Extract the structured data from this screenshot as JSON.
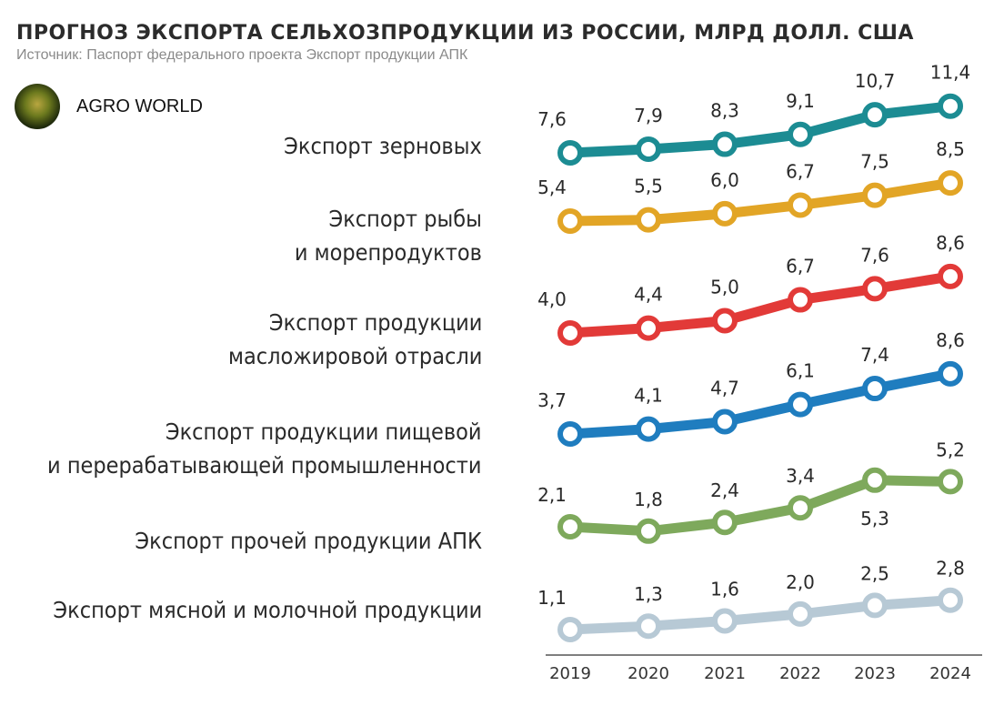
{
  "header": {
    "title": "ПРОГНОЗ ЭКСПОРТА СЕЛЬХОЗПРОДУКЦИИ ИЗ РОССИИ,  МЛРД ДОЛЛ. США",
    "source": "Источник: Паспорт федерального проекта Экспорт продукции АПК"
  },
  "brand": {
    "name": "AGRO WORLD",
    "logo_icon": "agro-world-logo-icon"
  },
  "categories": [
    {
      "line1": "Экспорт зерновых",
      "line2": ""
    },
    {
      "line1": "Экспорт рыбы",
      "line2": "и морепродуктов"
    },
    {
      "line1": "Экспорт продукции",
      "line2": "масложировой отрасли"
    },
    {
      "line1": "Экспорт продукции пищевой",
      "line2": "и перерабатывающей промышленности"
    },
    {
      "line1": "Экспорт прочей продукции АПК",
      "line2": ""
    },
    {
      "line1": "Экспорт мясной и молочной продукции",
      "line2": ""
    }
  ],
  "chart_data": {
    "type": "line",
    "x": [
      "2019",
      "2020",
      "2021",
      "2022",
      "2023",
      "2024"
    ],
    "series": [
      {
        "name": "Экспорт зерновых",
        "color": "#1c8c93",
        "values": [
          7.6,
          7.9,
          8.3,
          9.1,
          10.7,
          11.4
        ],
        "labels": [
          "7,6",
          "7,9",
          "8,3",
          "9,1",
          "10,7",
          "11,4"
        ]
      },
      {
        "name": "Экспорт рыбы и морепродуктов",
        "color": "#e2a526",
        "values": [
          5.4,
          5.5,
          6.0,
          6.7,
          7.5,
          8.5
        ],
        "labels": [
          "5,4",
          "5,5",
          "6,0",
          "6,7",
          "7,5",
          "8,5"
        ]
      },
      {
        "name": "Экспорт продукции масложировой отрасли",
        "color": "#e23a38",
        "values": [
          4.0,
          4.4,
          5.0,
          6.7,
          7.6,
          8.6
        ],
        "labels": [
          "4,0",
          "4,4",
          "5,0",
          "6,7",
          "7,6",
          "8,6"
        ]
      },
      {
        "name": "Экспорт продукции пищевой и перерабатывающей промышленности",
        "color": "#1f7dbf",
        "values": [
          3.7,
          4.1,
          4.7,
          6.1,
          7.4,
          8.6
        ],
        "labels": [
          "3,7",
          "4,1",
          "4,7",
          "6,1",
          "7,4",
          "8,6"
        ]
      },
      {
        "name": "Экспорт прочей продукции АПК",
        "color": "#7ea95c",
        "values": [
          2.1,
          1.8,
          2.4,
          3.4,
          5.3,
          5.2
        ],
        "labels": [
          "2,1",
          "1,8",
          "2,4",
          "3,4",
          "5,3",
          "5,2"
        ]
      },
      {
        "name": "Экспорт мясной и молочной продукции",
        "color": "#b7c9d5",
        "values": [
          1.1,
          1.3,
          1.6,
          2.0,
          2.5,
          2.8
        ],
        "labels": [
          "1,1",
          "1,3",
          "1,6",
          "2,0",
          "2,5",
          "2,8"
        ]
      }
    ],
    "ylabel_unit": "МЛРД ДОЛЛ. США",
    "grid": false,
    "legend": "none"
  }
}
